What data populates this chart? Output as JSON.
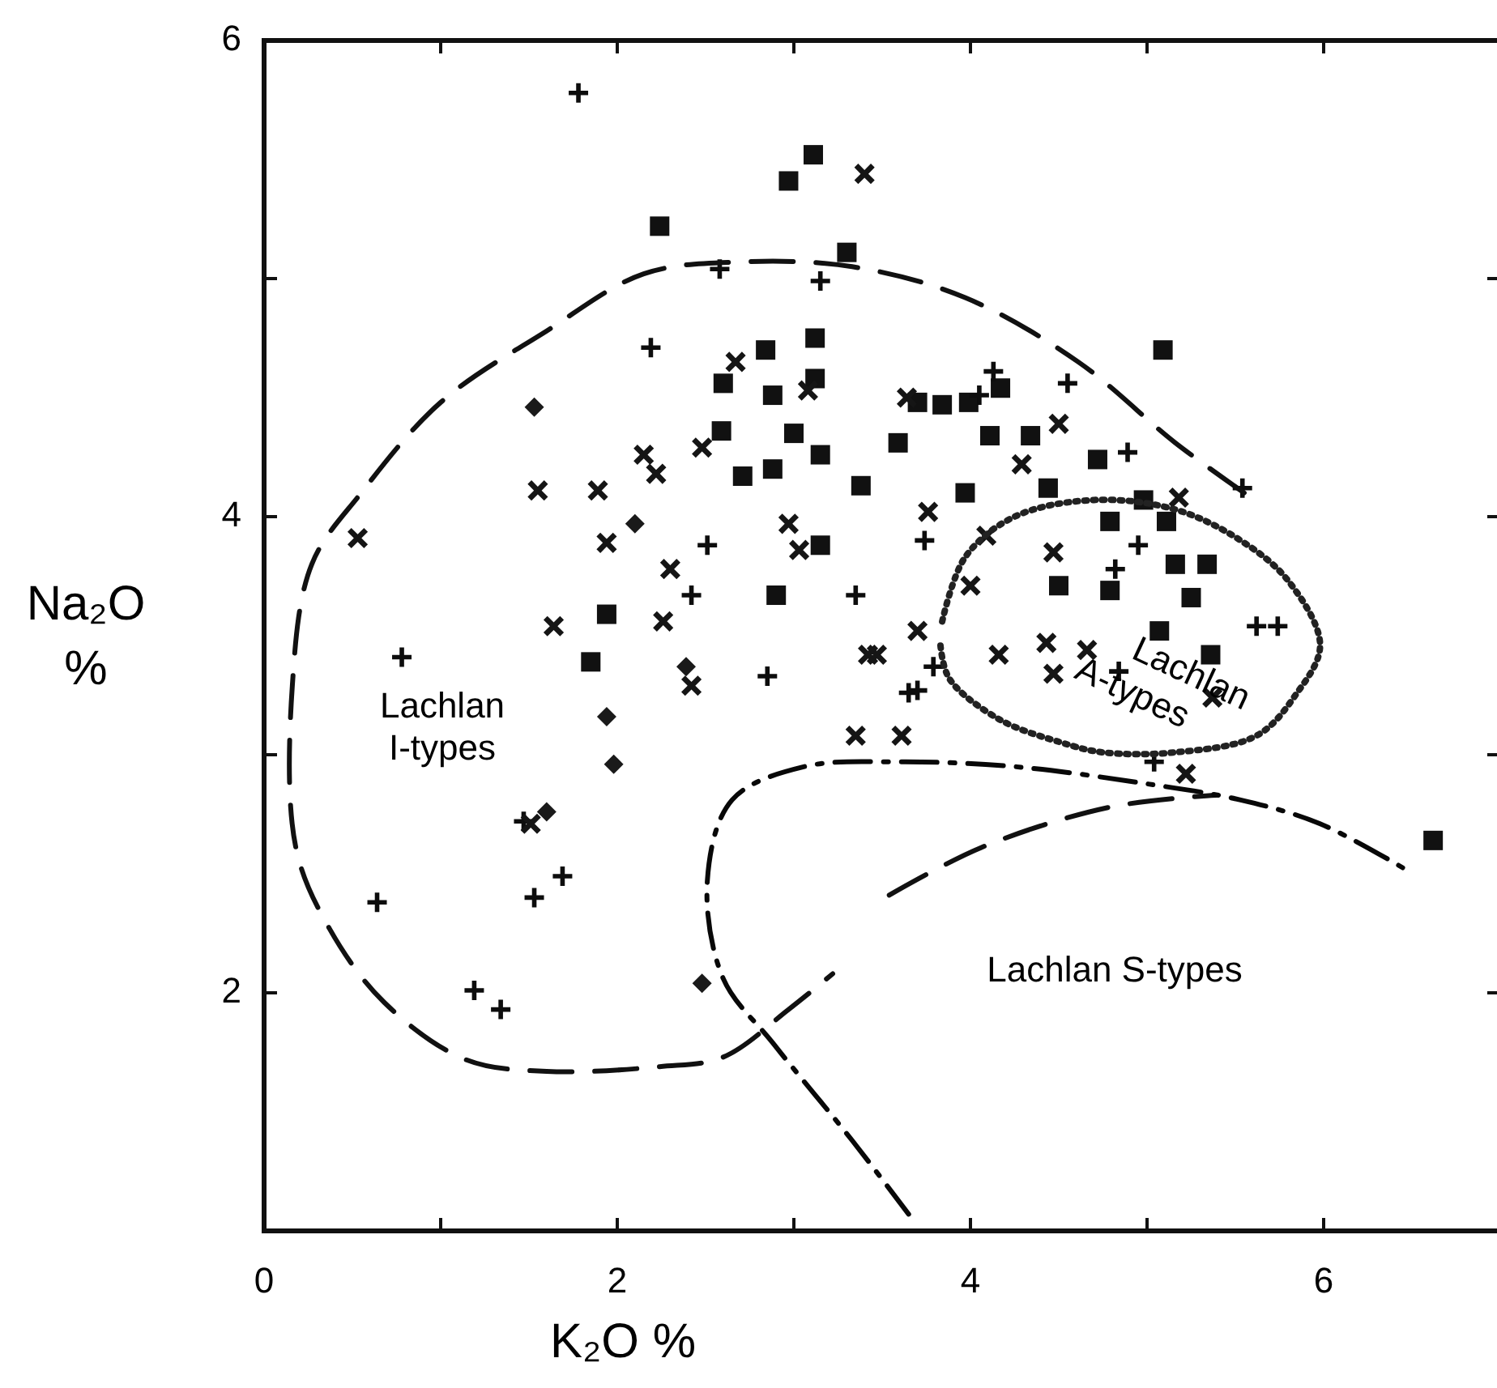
{
  "chart_data": {
    "type": "scatter",
    "xlabel": "K₂O %",
    "ylabel": "Na₂O %",
    "xlim": [
      0,
      7
    ],
    "ylim": [
      1,
      6
    ],
    "xticks": [
      0,
      {
        "value": 1,
        "label": null
      },
      2,
      {
        "value": 3,
        "label": null
      },
      4,
      {
        "value": 5,
        "label": null
      },
      6
    ],
    "yticks": [
      2,
      {
        "value": 3,
        "label": null
      },
      4,
      {
        "value": 5,
        "label": null
      },
      6
    ],
    "grid": false,
    "series": [
      {
        "marker": "square",
        "color": "#111111",
        "x": [
          2.24,
          2.97,
          3.11,
          3.3,
          4.17,
          5.09,
          3.12,
          2.84,
          2.88,
          3.12,
          3.0,
          3.15,
          2.59,
          2.6,
          2.71,
          2.88,
          3.15,
          3.38,
          3.59,
          3.7,
          3.84,
          3.99,
          4.34,
          4.44,
          4.72,
          3.97,
          4.79,
          4.98,
          5.11,
          4.5,
          4.79,
          5.16,
          5.34,
          5.25,
          5.07,
          5.36,
          1.94,
          1.85,
          2.9,
          6.62,
          4.11
        ],
        "values": [
          5.22,
          5.41,
          5.52,
          5.11,
          4.54,
          4.7,
          4.75,
          4.7,
          4.51,
          4.58,
          4.35,
          4.26,
          4.36,
          4.56,
          4.17,
          4.2,
          3.88,
          4.13,
          4.31,
          4.48,
          4.47,
          4.48,
          4.34,
          4.12,
          4.24,
          4.1,
          3.98,
          4.07,
          3.98,
          3.71,
          3.69,
          3.8,
          3.8,
          3.66,
          3.52,
          3.42,
          3.59,
          3.39,
          3.67,
          2.64,
          4.34
        ]
      },
      {
        "marker": "diamond",
        "color": "#1a1a1a",
        "x": [
          1.94,
          1.98,
          1.6,
          2.48,
          2.39,
          1.53,
          2.1
        ],
        "values": [
          3.16,
          2.96,
          2.76,
          2.04,
          3.37,
          4.46,
          3.97
        ]
      },
      {
        "marker": "plus",
        "color": "#0d0d0d",
        "x": [
          1.78,
          2.19,
          2.58,
          3.15,
          0.78,
          2.85,
          0.64,
          1.53,
          1.69,
          1.19,
          1.34,
          1.47,
          3.35,
          2.51,
          2.42,
          4.55,
          4.89,
          4.95,
          4.82,
          4.13,
          4.05,
          3.65,
          3.79,
          5.04,
          4.84,
          5.74,
          5.62,
          5.54,
          3.74,
          3.7
        ],
        "values": [
          5.78,
          4.71,
          5.04,
          4.99,
          3.41,
          3.33,
          2.38,
          2.4,
          2.49,
          2.01,
          1.93,
          2.72,
          3.67,
          3.88,
          3.67,
          4.56,
          4.27,
          3.88,
          3.78,
          4.61,
          4.51,
          3.26,
          3.37,
          2.97,
          3.35,
          3.54,
          3.54,
          4.12,
          3.9,
          3.27
        ]
      },
      {
        "marker": "cross",
        "color": "#151515",
        "x": [
          3.4,
          0.53,
          1.55,
          1.89,
          2.15,
          2.22,
          2.48,
          1.94,
          2.3,
          2.97,
          3.03,
          2.67,
          3.08,
          1.64,
          2.26,
          3.42,
          2.42,
          3.35,
          1.51,
          3.64,
          4.5,
          3.76,
          5.18,
          4.29,
          4.47,
          4.0,
          4.09,
          3.7,
          4.43,
          4.66,
          4.47,
          5.37,
          5.22,
          3.47,
          3.61,
          4.16
        ],
        "values": [
          5.44,
          3.91,
          4.11,
          4.11,
          4.26,
          4.18,
          4.29,
          3.89,
          3.78,
          3.97,
          3.86,
          4.65,
          4.53,
          3.54,
          3.56,
          3.42,
          3.29,
          3.08,
          2.71,
          4.5,
          4.39,
          4.02,
          4.08,
          4.22,
          3.85,
          3.71,
          3.92,
          3.52,
          3.47,
          3.44,
          3.34,
          3.24,
          2.92,
          3.42,
          3.08,
          3.42
        ]
      },
      {
        "type": "line",
        "line_style": "dashed",
        "color": "#111111",
        "marker": "none",
        "x": [
          5.55,
          5.16,
          4.61,
          3.97,
          3.33,
          2.69,
          2.15,
          1.6,
          1.0,
          0.55,
          0.27,
          0.16,
          0.18,
          0.37,
          0.68,
          1.14,
          1.6,
          2.24,
          2.6,
          2.97,
          3.22
        ],
        "values": [
          4.1,
          4.31,
          4.65,
          4.92,
          5.05,
          5.07,
          5.02,
          4.78,
          4.48,
          4.1,
          3.8,
          3.29,
          2.61,
          2.27,
          1.96,
          1.72,
          1.67,
          1.69,
          1.73,
          1.93,
          2.08
        ]
      },
      {
        "type": "line",
        "line_style": "dashed",
        "color": "#111111",
        "marker": "none",
        "x": [
          3.54,
          4.06,
          4.79,
          5.39
        ],
        "values": [
          2.41,
          2.61,
          2.78,
          2.83
        ]
      },
      {
        "type": "line",
        "line_style": "dashdot",
        "color": "#080808",
        "marker": "none",
        "x": [
          3.65,
          3.33,
          2.88,
          2.6,
          2.51,
          2.65,
          3.06,
          3.61,
          4.25,
          4.98,
          5.53,
          5.98,
          6.46
        ],
        "values": [
          1.07,
          1.38,
          1.79,
          2.06,
          2.47,
          2.81,
          2.95,
          2.97,
          2.95,
          2.88,
          2.81,
          2.71,
          2.52
        ]
      },
      {
        "type": "line",
        "line_style": "dotted",
        "color": "#222222",
        "marker": "none",
        "x": [
          3.84,
          3.97,
          4.25,
          4.7,
          5.16,
          5.53,
          5.8,
          5.98,
          5.84,
          5.62,
          5.16,
          4.75,
          4.52,
          4.16,
          3.88,
          3.83
        ],
        "values": [
          3.56,
          3.83,
          4.0,
          4.07,
          4.03,
          3.9,
          3.73,
          3.46,
          3.25,
          3.08,
          3.01,
          3.01,
          3.05,
          3.15,
          3.32,
          3.46
        ]
      }
    ],
    "annotations": [
      "Lachlan I-types",
      "Lachlan S-types",
      "Lachlan A-types"
    ]
  }
}
